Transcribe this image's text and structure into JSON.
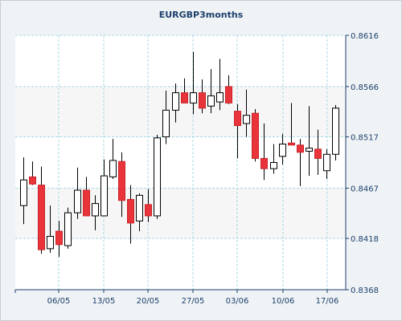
{
  "chart_data": {
    "type": "candlestick",
    "title": "EURGBP3months",
    "xlabel": "",
    "ylabel": "",
    "ylim": [
      0.8368,
      0.8616
    ],
    "yticks": [
      "0.8616",
      "0.8566",
      "0.8517",
      "0.8467",
      "0.8418",
      "0.8368"
    ],
    "xticks": [
      "06/05",
      "13/05",
      "20/05",
      "27/05",
      "03/06",
      "10/06",
      "17/06"
    ],
    "grid": true,
    "colors": {
      "up_fill": "#ffffff",
      "down_fill": "#e8343a",
      "outline": "#000000",
      "grid": "#a8d8e4",
      "band": "#f6f6f6",
      "axis_text": "#1a3f6b"
    },
    "candles": [
      {
        "open": 0.845,
        "high": 0.8497,
        "low": 0.8432,
        "close": 0.8475
      },
      {
        "open": 0.8478,
        "high": 0.8493,
        "low": 0.847,
        "close": 0.8471
      },
      {
        "open": 0.847,
        "high": 0.8488,
        "low": 0.8403,
        "close": 0.8407
      },
      {
        "open": 0.8408,
        "high": 0.845,
        "low": 0.8404,
        "close": 0.842
      },
      {
        "open": 0.8425,
        "high": 0.8435,
        "low": 0.84,
        "close": 0.8412
      },
      {
        "open": 0.8411,
        "high": 0.8448,
        "low": 0.8408,
        "close": 0.8443
      },
      {
        "open": 0.8443,
        "high": 0.8487,
        "low": 0.8437,
        "close": 0.8465
      },
      {
        "open": 0.8465,
        "high": 0.8478,
        "low": 0.844,
        "close": 0.844
      },
      {
        "open": 0.844,
        "high": 0.846,
        "low": 0.8426,
        "close": 0.8452
      },
      {
        "open": 0.844,
        "high": 0.8495,
        "low": 0.844,
        "close": 0.8479
      },
      {
        "open": 0.8478,
        "high": 0.8515,
        "low": 0.8476,
        "close": 0.8494
      },
      {
        "open": 0.8493,
        "high": 0.8502,
        "low": 0.8439,
        "close": 0.8455
      },
      {
        "open": 0.8456,
        "high": 0.847,
        "low": 0.8413,
        "close": 0.8433
      },
      {
        "open": 0.8435,
        "high": 0.8462,
        "low": 0.8425,
        "close": 0.846
      },
      {
        "open": 0.8451,
        "high": 0.8466,
        "low": 0.8434,
        "close": 0.844
      },
      {
        "open": 0.844,
        "high": 0.8519,
        "low": 0.8437,
        "close": 0.8516
      },
      {
        "open": 0.8517,
        "high": 0.8562,
        "low": 0.851,
        "close": 0.8543
      },
      {
        "open": 0.8543,
        "high": 0.8569,
        "low": 0.8531,
        "close": 0.856
      },
      {
        "open": 0.856,
        "high": 0.8574,
        "low": 0.855,
        "close": 0.855
      },
      {
        "open": 0.855,
        "high": 0.86,
        "low": 0.8539,
        "close": 0.856
      },
      {
        "open": 0.856,
        "high": 0.8573,
        "low": 0.854,
        "close": 0.8545
      },
      {
        "open": 0.8547,
        "high": 0.8583,
        "low": 0.854,
        "close": 0.8557
      },
      {
        "open": 0.8551,
        "high": 0.8593,
        "low": 0.8543,
        "close": 0.856
      },
      {
        "open": 0.8566,
        "high": 0.8577,
        "low": 0.8549,
        "close": 0.855
      },
      {
        "open": 0.8542,
        "high": 0.8549,
        "low": 0.8496,
        "close": 0.8528
      },
      {
        "open": 0.853,
        "high": 0.8563,
        "low": 0.8517,
        "close": 0.8538
      },
      {
        "open": 0.854,
        "high": 0.8544,
        "low": 0.8493,
        "close": 0.8496
      },
      {
        "open": 0.8496,
        "high": 0.853,
        "low": 0.8475,
        "close": 0.8486
      },
      {
        "open": 0.8486,
        "high": 0.851,
        "low": 0.8481,
        "close": 0.8492
      },
      {
        "open": 0.8498,
        "high": 0.852,
        "low": 0.849,
        "close": 0.851
      },
      {
        "open": 0.8511,
        "high": 0.855,
        "low": 0.8509,
        "close": 0.8509
      },
      {
        "open": 0.8509,
        "high": 0.8515,
        "low": 0.8469,
        "close": 0.8502
      },
      {
        "open": 0.8503,
        "high": 0.8547,
        "low": 0.8479,
        "close": 0.8506
      },
      {
        "open": 0.8505,
        "high": 0.8524,
        "low": 0.848,
        "close": 0.8496
      },
      {
        "open": 0.8484,
        "high": 0.8505,
        "low": 0.8476,
        "close": 0.85
      },
      {
        "open": 0.85,
        "high": 0.8548,
        "low": 0.8494,
        "close": 0.8545
      }
    ]
  }
}
